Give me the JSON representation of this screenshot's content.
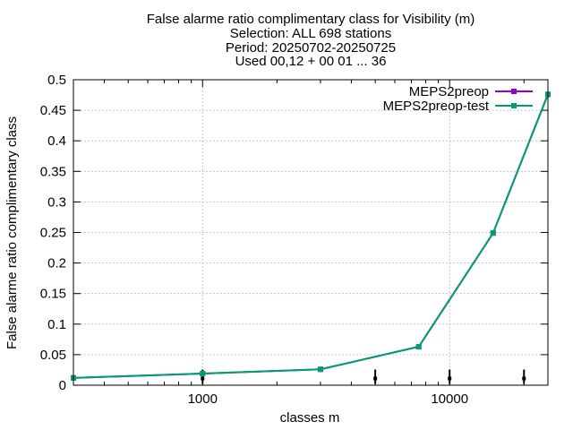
{
  "chart_data": {
    "type": "line",
    "title_lines": [
      "False alarme ratio complimentary class  for Visibility (m)",
      "Selection: ALL    698 stations",
      "Period: 20250702-20250725",
      "Used 00,12 + 00 01 ... 36"
    ],
    "xlabel": "classes m",
    "ylabel": "False alarme ratio complimentary class",
    "x_scale": "log",
    "xlim": [
      300,
      25000
    ],
    "ylim": [
      0,
      0.5
    ],
    "x_ticks": [
      1000,
      10000
    ],
    "x_tick_labels": [
      "1000",
      "10000"
    ],
    "y_ticks": [
      0,
      0.05,
      0.1,
      0.15,
      0.2,
      0.25,
      0.3,
      0.35,
      0.4,
      0.45,
      0.5
    ],
    "y_tick_labels": [
      "0",
      "0.05",
      "0.1",
      "0.15",
      "0.2",
      "0.25",
      "0.3",
      "0.35",
      "0.4",
      "0.45",
      "0.5"
    ],
    "grid": true,
    "legend_position": "top-right",
    "series": [
      {
        "name": "MEPS2preop",
        "color": "#9400d3",
        "x": [
          300,
          1000,
          3000,
          7500,
          15000,
          25000
        ],
        "y": [
          0.012,
          0.019,
          0.026,
          0.063,
          0.249,
          0.476
        ]
      },
      {
        "name": "MEPS2preop-test",
        "color": "#009e73",
        "x": [
          300,
          1000,
          3000,
          7500,
          15000,
          25000
        ],
        "y": [
          0.012,
          0.019,
          0.026,
          0.063,
          0.249,
          0.476
        ]
      }
    ],
    "count_markers": [
      {
        "x": 1000,
        "y": 0.011
      },
      {
        "x": 5000,
        "y": 0.011
      },
      {
        "x": 10000,
        "y": 0.011
      },
      {
        "x": 20000,
        "y": 0.011
      }
    ]
  }
}
